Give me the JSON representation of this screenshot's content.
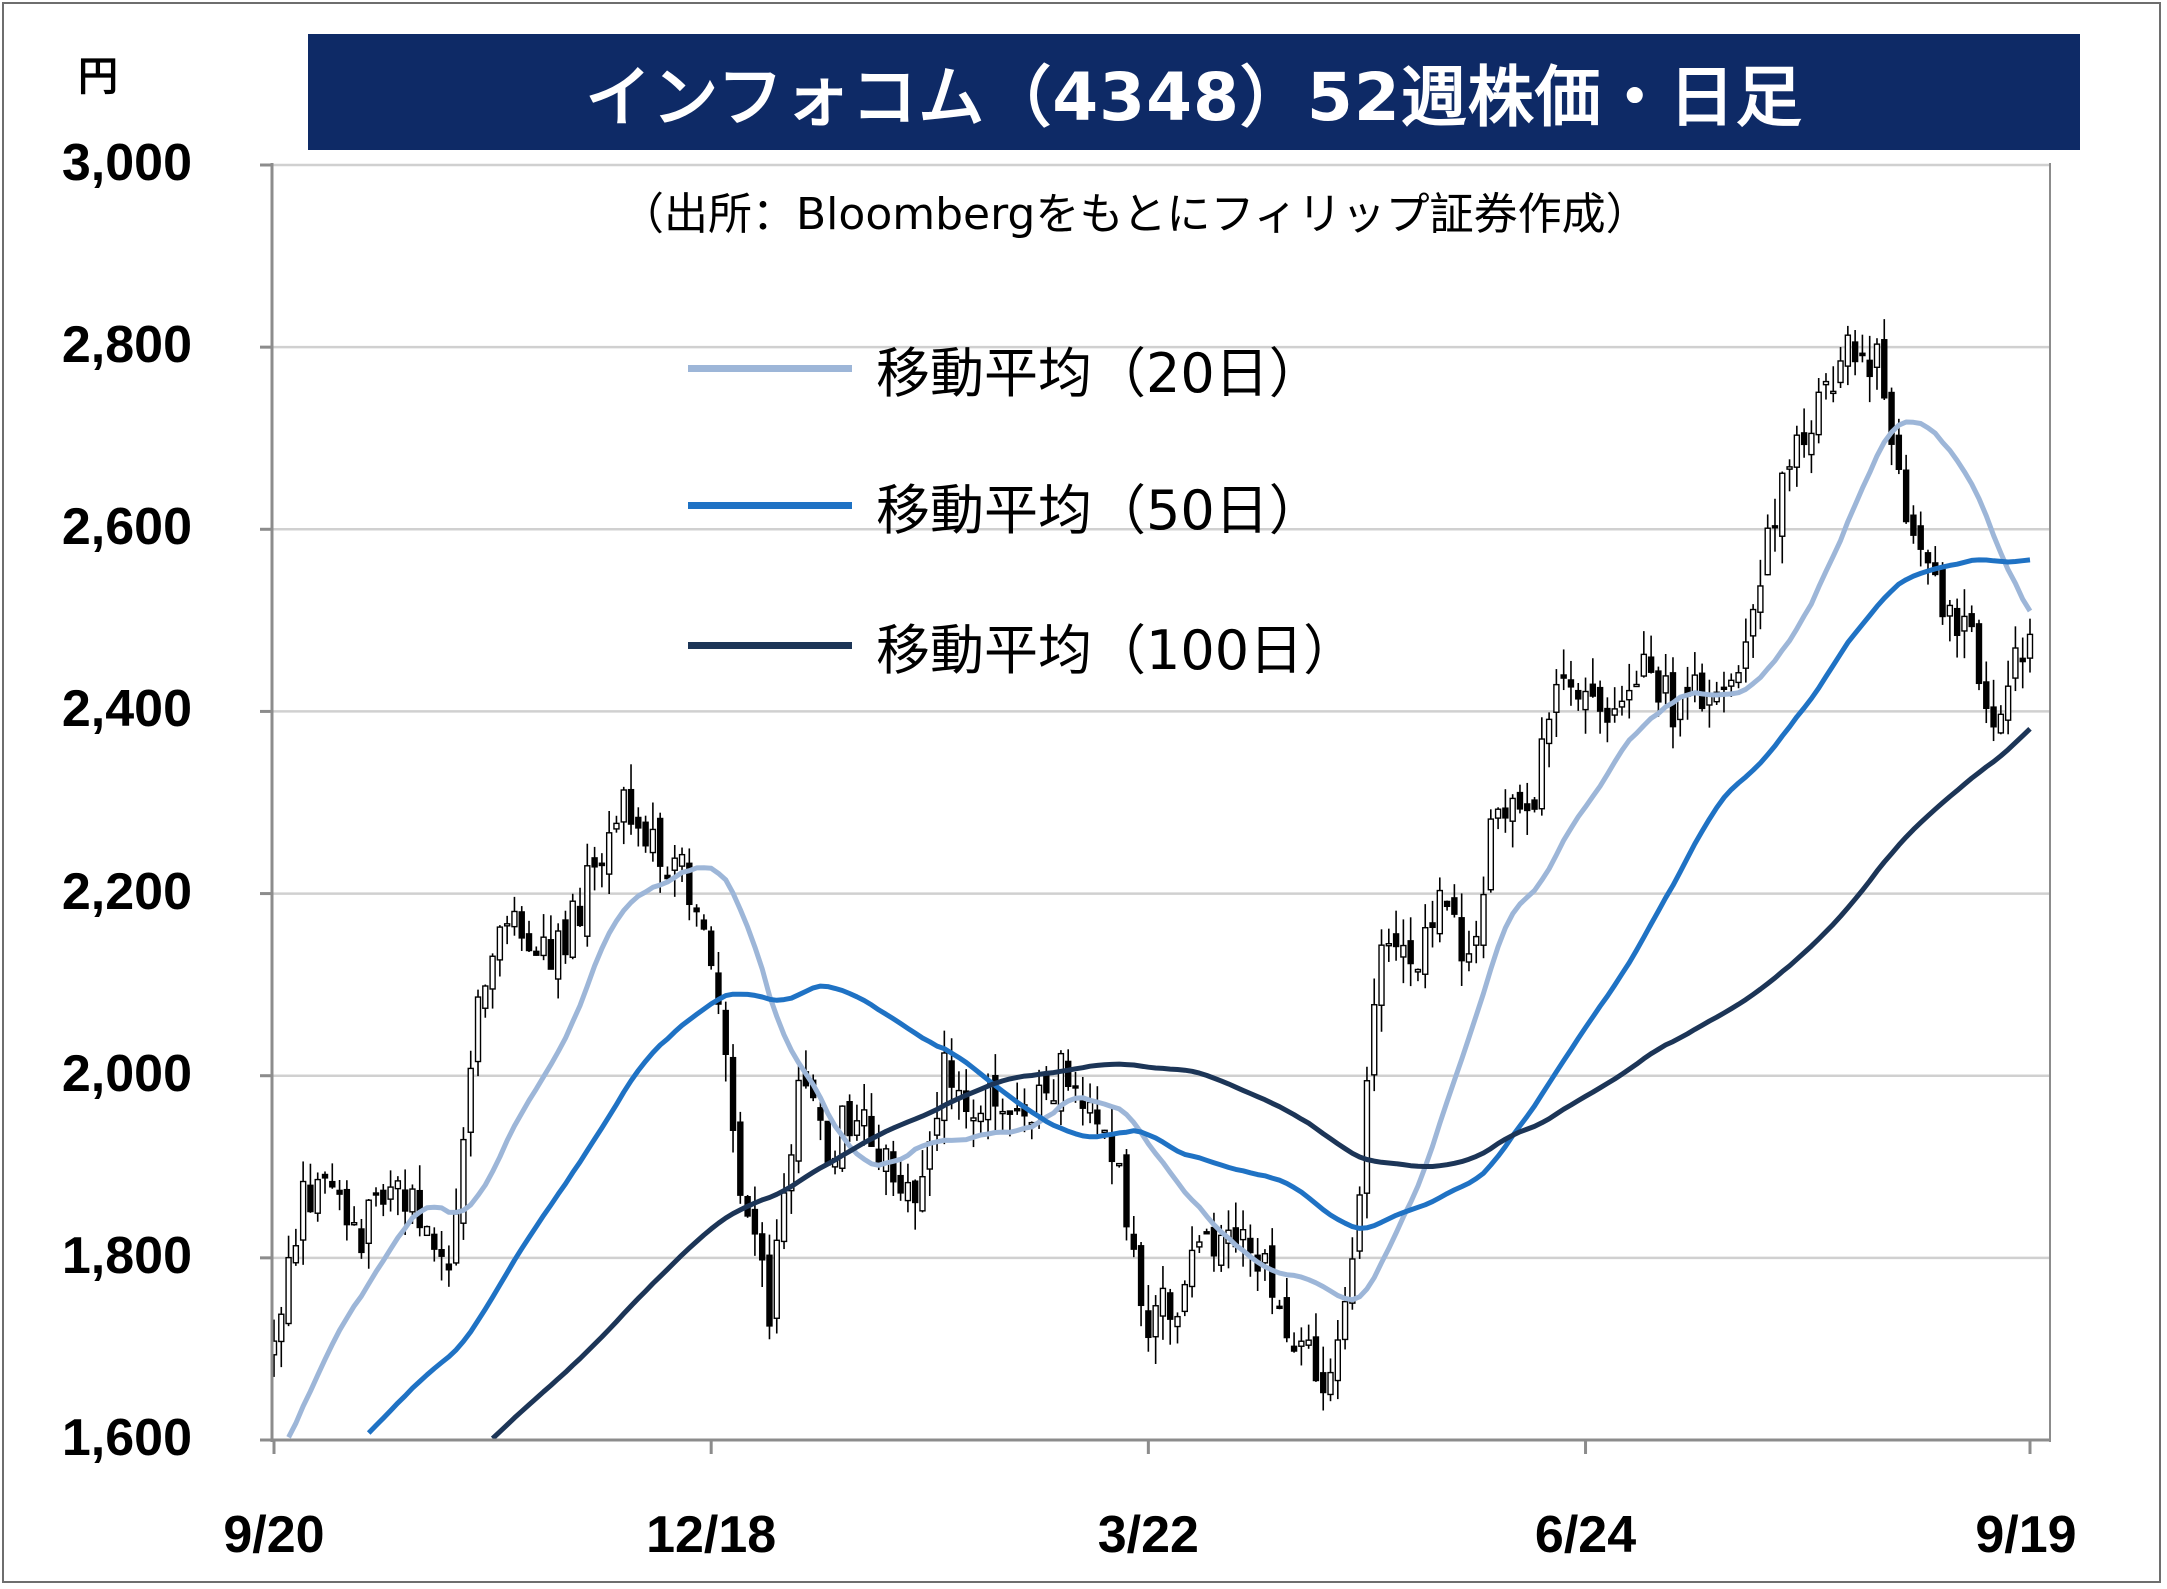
{
  "title": "インフォコム（4348）52週株価・日足",
  "unit_label": "円",
  "source": "（出所：Bloombergをもとにフィリップ証券作成）",
  "colors": {
    "title_bg": "#0e2a66",
    "candle": "#000000",
    "ma20": "#9db6d8",
    "ma50": "#1f72c4",
    "ma100": "#1c3557",
    "grid": "#d0d0d0"
  },
  "chart_data": {
    "type": "candlestick",
    "title": "インフォコム（4348）52週株価・日足",
    "ylabel": "円",
    "ylim": [
      1600,
      3000
    ],
    "yticks": [
      "1,600",
      "1,800",
      "2,000",
      "2,200",
      "2,400",
      "2,600",
      "2,800",
      "3,000"
    ],
    "ytick_values": [
      1600,
      1800,
      2000,
      2200,
      2400,
      2600,
      2800,
      3000
    ],
    "xticks": [
      "9/20",
      "12/18",
      "3/22",
      "6/24",
      "9/19"
    ],
    "xtick_index": [
      0,
      60,
      120,
      180,
      241
    ],
    "n_days": 242,
    "grid": true,
    "legend": "upper-center",
    "price_anchors": {
      "index": [
        0,
        4,
        8,
        12,
        16,
        20,
        24,
        28,
        32,
        36,
        40,
        44,
        48,
        52,
        56,
        60,
        64,
        68,
        72,
        76,
        80,
        84,
        88,
        92,
        96,
        100,
        104,
        108,
        112,
        116,
        120,
        124,
        128,
        132,
        136,
        140,
        144,
        148,
        150,
        152,
        156,
        160,
        164,
        168,
        172,
        176,
        180,
        184,
        188,
        192,
        196,
        200,
        204,
        208,
        212,
        216,
        220,
        224,
        228,
        232,
        236,
        241
      ],
      "close": [
        1720,
        1870,
        1870,
        1830,
        1900,
        1850,
        1770,
        2080,
        2170,
        2130,
        2150,
        2230,
        2300,
        2250,
        2230,
        2130,
        1880,
        1750,
        2000,
        1920,
        1970,
        1900,
        1880,
        2000,
        1960,
        1980,
        1960,
        2000,
        1960,
        1880,
        1730,
        1760,
        1810,
        1830,
        1780,
        1720,
        1660,
        1780,
        1980,
        2160,
        2110,
        2200,
        2130,
        2310,
        2280,
        2430,
        2420,
        2380,
        2470,
        2400,
        2420,
        2410,
        2550,
        2680,
        2740,
        2800,
        2780,
        2600,
        2530,
        2500,
        2380,
        2500
      ]
    },
    "series": [
      {
        "name": "移動平均（20日）",
        "period": 20
      },
      {
        "name": "移動平均（50日）",
        "period": 50
      },
      {
        "name": "移動平均（100日）",
        "period": 100
      }
    ]
  }
}
